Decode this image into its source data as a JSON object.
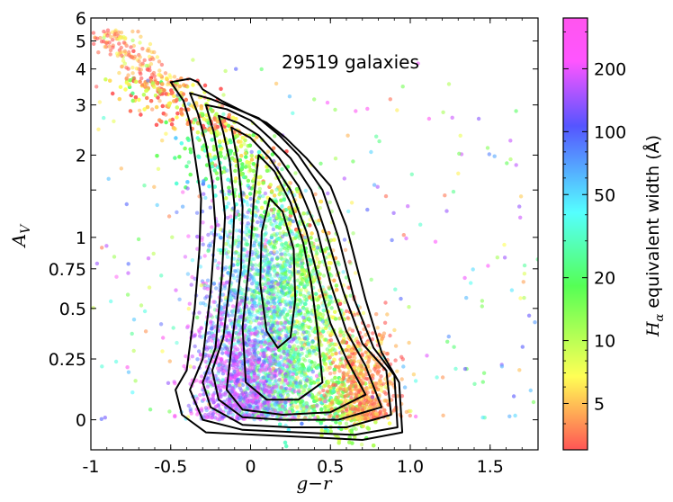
{
  "chart_data": {
    "type": "scatter",
    "annotation": "29519 galaxies",
    "xlabel": "g−r",
    "ylabel": "A",
    "ylabel_sub": "V",
    "xlim": [
      -1.0,
      1.8
    ],
    "ylim": [
      -0.12,
      6.0
    ],
    "x_ticks": [
      -1.0,
      -0.5,
      0.0,
      0.5,
      1.0,
      1.5
    ],
    "x_tick_labels": [
      "-1",
      "-0.5",
      "0",
      "0.5",
      "1.0",
      "1.5"
    ],
    "y_ticks": [
      0,
      0.25,
      0.5,
      0.75,
      1,
      2,
      3,
      4,
      5,
      6
    ],
    "y_tick_labels": [
      "0",
      "0.25",
      "0.5",
      "0.75",
      "1",
      "2",
      "3",
      "4",
      "5",
      "6"
    ],
    "y_minor_ticks": [
      1.5
    ],
    "y_scale": "asinh-like (expanded near 0)",
    "colorbar": {
      "label": "equivalent width (Å)",
      "label_symbol": "H",
      "label_sub": "α",
      "scale": "log",
      "range": [
        3,
        350
      ],
      "ticks": [
        5,
        10,
        20,
        50,
        100,
        200
      ],
      "tick_labels": [
        "5",
        "10",
        "20",
        "50",
        "100",
        "200"
      ],
      "colormap": "hsv (red low → yellow → green → cyan → blue → magenta high)"
    },
    "grid": false,
    "contours": [
      {
        "level": 1,
        "points": [
          [
            -0.5,
            3.6
          ],
          [
            -0.38,
            3.7
          ],
          [
            -0.33,
            3.6
          ],
          [
            -0.3,
            3.4
          ],
          [
            -0.18,
            3.1
          ],
          [
            -0.05,
            2.85
          ],
          [
            0.1,
            2.6
          ],
          [
            0.22,
            2.3
          ],
          [
            0.35,
            1.95
          ],
          [
            0.5,
            1.55
          ],
          [
            0.6,
            1.1
          ],
          [
            0.72,
            0.55
          ],
          [
            0.82,
            0.28
          ],
          [
            0.93,
            0.15
          ],
          [
            0.95,
            -0.05
          ],
          [
            0.7,
            -0.08
          ],
          [
            0.4,
            -0.07
          ],
          [
            0.05,
            -0.06
          ],
          [
            -0.28,
            -0.05
          ],
          [
            -0.43,
            0.02
          ],
          [
            -0.47,
            0.12
          ],
          [
            -0.4,
            0.2
          ],
          [
            -0.35,
            0.5
          ],
          [
            -0.32,
            0.9
          ],
          [
            -0.31,
            1.4
          ],
          [
            -0.35,
            2.0
          ],
          [
            -0.38,
            2.6
          ],
          [
            -0.42,
            3.1
          ],
          [
            -0.5,
            3.6
          ]
        ]
      },
      {
        "level": 2,
        "points": [
          [
            -0.38,
            3.3
          ],
          [
            -0.25,
            3.15
          ],
          [
            -0.12,
            2.95
          ],
          [
            0.05,
            2.7
          ],
          [
            0.18,
            2.35
          ],
          [
            0.3,
            2.0
          ],
          [
            0.45,
            1.5
          ],
          [
            0.55,
            1.0
          ],
          [
            0.65,
            0.55
          ],
          [
            0.77,
            0.3
          ],
          [
            0.9,
            0.18
          ],
          [
            0.92,
            -0.03
          ],
          [
            0.65,
            -0.06
          ],
          [
            0.3,
            -0.05
          ],
          [
            -0.05,
            -0.04
          ],
          [
            -0.3,
            0.0
          ],
          [
            -0.38,
            0.12
          ],
          [
            -0.3,
            0.25
          ],
          [
            -0.25,
            0.6
          ],
          [
            -0.22,
            1.1
          ],
          [
            -0.24,
            1.6
          ],
          [
            -0.28,
            2.2
          ],
          [
            -0.33,
            2.8
          ],
          [
            -0.38,
            3.3
          ]
        ]
      },
      {
        "level": 3,
        "points": [
          [
            -0.28,
            3.0
          ],
          [
            -0.15,
            2.9
          ],
          [
            0.0,
            2.65
          ],
          [
            0.12,
            2.3
          ],
          [
            0.25,
            1.95
          ],
          [
            0.38,
            1.5
          ],
          [
            0.48,
            1.0
          ],
          [
            0.58,
            0.6
          ],
          [
            0.7,
            0.32
          ],
          [
            0.85,
            0.2
          ],
          [
            0.88,
            0.02
          ],
          [
            0.6,
            -0.03
          ],
          [
            0.25,
            -0.03
          ],
          [
            -0.05,
            -0.02
          ],
          [
            -0.25,
            0.05
          ],
          [
            -0.3,
            0.15
          ],
          [
            -0.22,
            0.3
          ],
          [
            -0.18,
            0.7
          ],
          [
            -0.16,
            1.2
          ],
          [
            -0.19,
            1.8
          ],
          [
            -0.23,
            2.4
          ],
          [
            -0.28,
            3.0
          ]
        ]
      },
      {
        "level": 4,
        "points": [
          [
            -0.2,
            2.75
          ],
          [
            -0.08,
            2.6
          ],
          [
            0.05,
            2.35
          ],
          [
            0.18,
            1.95
          ],
          [
            0.3,
            1.55
          ],
          [
            0.42,
            1.05
          ],
          [
            0.5,
            0.65
          ],
          [
            0.6,
            0.38
          ],
          [
            0.72,
            0.22
          ],
          [
            0.82,
            0.05
          ],
          [
            0.55,
            0.0
          ],
          [
            0.2,
            0.0
          ],
          [
            -0.05,
            0.01
          ],
          [
            -0.2,
            0.08
          ],
          [
            -0.24,
            0.2
          ],
          [
            -0.17,
            0.35
          ],
          [
            -0.12,
            0.75
          ],
          [
            -0.1,
            1.3
          ],
          [
            -0.13,
            1.9
          ],
          [
            -0.17,
            2.4
          ],
          [
            -0.2,
            2.75
          ]
        ]
      },
      {
        "level": 5,
        "points": [
          [
            -0.12,
            2.5
          ],
          [
            0.0,
            2.3
          ],
          [
            0.12,
            1.95
          ],
          [
            0.25,
            1.5
          ],
          [
            0.35,
            1.05
          ],
          [
            0.42,
            0.7
          ],
          [
            0.5,
            0.42
          ],
          [
            0.6,
            0.25
          ],
          [
            0.72,
            0.1
          ],
          [
            0.5,
            0.03
          ],
          [
            0.2,
            0.02
          ],
          [
            -0.05,
            0.04
          ],
          [
            -0.15,
            0.12
          ],
          [
            -0.12,
            0.3
          ],
          [
            -0.06,
            0.75
          ],
          [
            -0.05,
            1.3
          ],
          [
            -0.08,
            1.9
          ],
          [
            -0.12,
            2.5
          ]
        ]
      },
      {
        "level": 6,
        "points": [
          [
            0.05,
            2.0
          ],
          [
            0.15,
            1.75
          ],
          [
            0.25,
            1.35
          ],
          [
            0.33,
            0.95
          ],
          [
            0.38,
            0.65
          ],
          [
            0.42,
            0.38
          ],
          [
            0.45,
            0.15
          ],
          [
            0.3,
            0.08
          ],
          [
            0.1,
            0.08
          ],
          [
            -0.03,
            0.15
          ],
          [
            -0.05,
            0.4
          ],
          [
            0.0,
            0.9
          ],
          [
            0.02,
            1.4
          ],
          [
            0.05,
            2.0
          ]
        ]
      },
      {
        "level": 7,
        "points": [
          [
            0.12,
            1.4
          ],
          [
            0.2,
            1.25
          ],
          [
            0.27,
            0.9
          ],
          [
            0.28,
            0.55
          ],
          [
            0.25,
            0.35
          ],
          [
            0.17,
            0.3
          ],
          [
            0.1,
            0.38
          ],
          [
            0.06,
            0.65
          ],
          [
            0.07,
            1.05
          ],
          [
            0.12,
            1.4
          ]
        ]
      }
    ]
  }
}
